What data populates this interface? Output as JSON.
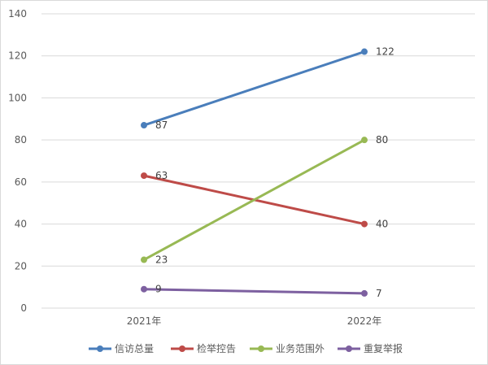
{
  "chart_data": {
    "type": "line",
    "title": "",
    "xlabel": "",
    "ylabel": "",
    "categories": [
      "2021年",
      "2022年"
    ],
    "ylim": [
      0,
      140
    ],
    "yticks": [
      0,
      20,
      40,
      60,
      80,
      100,
      120,
      140
    ],
    "grid": true,
    "legend_position": "bottom",
    "series": [
      {
        "name": "信访总量",
        "values": [
          87,
          122
        ],
        "color": "#4a7ebb"
      },
      {
        "name": "检举控告",
        "values": [
          63,
          40
        ],
        "color": "#be4b48"
      },
      {
        "name": "业务范围外",
        "values": [
          23,
          80
        ],
        "color": "#98b954"
      },
      {
        "name": "重复举报",
        "values": [
          9,
          7
        ],
        "color": "#7d60a0"
      }
    ]
  }
}
